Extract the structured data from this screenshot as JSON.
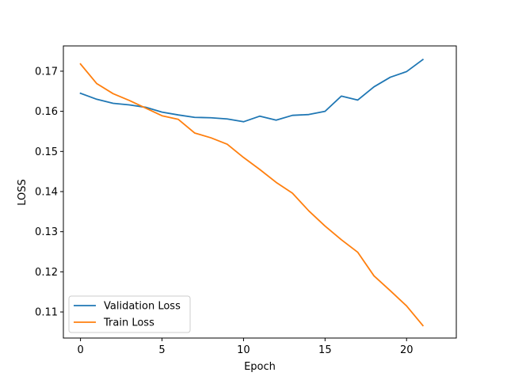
{
  "chart_data": {
    "type": "line",
    "title": "",
    "xlabel": "Epoch",
    "ylabel": "LOSS",
    "xlim": [
      -1.05,
      23.05
    ],
    "ylim": [
      0.1035,
      0.1763
    ],
    "xticks": [
      0,
      5,
      10,
      15,
      20
    ],
    "yticks": [
      0.11,
      0.12,
      0.13,
      0.14,
      0.15,
      0.16,
      0.17
    ],
    "grid": false,
    "legend_position": "lower-left",
    "x": [
      0,
      1,
      2,
      3,
      4,
      5,
      6,
      7,
      8,
      9,
      10,
      11,
      12,
      13,
      14,
      15,
      16,
      17,
      18,
      19,
      20,
      21
    ],
    "series": [
      {
        "name": "Validation Loss",
        "color": "#1f77b4",
        "values": [
          0.1645,
          0.163,
          0.162,
          0.1616,
          0.161,
          0.1598,
          0.1591,
          0.1585,
          0.1584,
          0.1581,
          0.1574,
          0.1588,
          0.1578,
          0.159,
          0.1592,
          0.16,
          0.1638,
          0.1628,
          0.1661,
          0.1685,
          0.1699,
          0.1729
        ]
      },
      {
        "name": "Train Loss",
        "color": "#ff7f0e",
        "values": [
          0.1718,
          0.1669,
          0.1644,
          0.1627,
          0.1608,
          0.1589,
          0.158,
          0.1546,
          0.1534,
          0.1518,
          0.1485,
          0.1455,
          0.1423,
          0.1396,
          0.1352,
          0.1314,
          0.128,
          0.1249,
          0.119,
          0.1153,
          0.1115,
          0.1066
        ]
      }
    ]
  }
}
